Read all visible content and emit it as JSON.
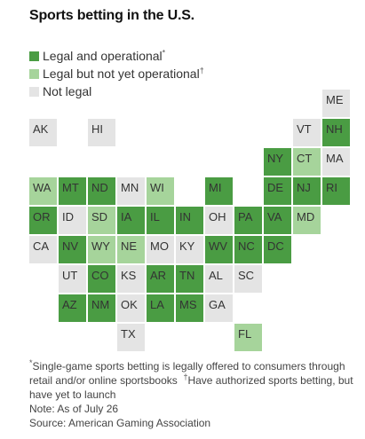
{
  "title": "Sports betting in the U.S.",
  "legend": {
    "items": [
      {
        "key": "legal",
        "label": "Legal and operational",
        "marker": "*",
        "color": "#4a9c43"
      },
      {
        "key": "pending",
        "label": "Legal but not yet operational",
        "marker": "†",
        "color": "#a6d49b"
      },
      {
        "key": "none",
        "label": "Not legal",
        "marker": "",
        "color": "#e4e4e4"
      }
    ]
  },
  "states": [
    {
      "abbr": "ME",
      "status": "none",
      "col": 10,
      "row": 0
    },
    {
      "abbr": "AK",
      "status": "none",
      "col": 0,
      "row": 1
    },
    {
      "abbr": "HI",
      "status": "none",
      "col": 2,
      "row": 1
    },
    {
      "abbr": "VT",
      "status": "none",
      "col": 9,
      "row": 1
    },
    {
      "abbr": "NH",
      "status": "legal",
      "col": 10,
      "row": 1
    },
    {
      "abbr": "NY",
      "status": "legal",
      "col": 8,
      "row": 2
    },
    {
      "abbr": "CT",
      "status": "pending",
      "col": 9,
      "row": 2
    },
    {
      "abbr": "MA",
      "status": "none",
      "col": 10,
      "row": 2
    },
    {
      "abbr": "WA",
      "status": "pending",
      "col": 0,
      "row": 3
    },
    {
      "abbr": "MT",
      "status": "legal",
      "col": 1,
      "row": 3
    },
    {
      "abbr": "ND",
      "status": "legal",
      "col": 2,
      "row": 3
    },
    {
      "abbr": "MN",
      "status": "none",
      "col": 3,
      "row": 3
    },
    {
      "abbr": "WI",
      "status": "pending",
      "col": 4,
      "row": 3
    },
    {
      "abbr": "MI",
      "status": "legal",
      "col": 6,
      "row": 3
    },
    {
      "abbr": "DE",
      "status": "legal",
      "col": 8,
      "row": 3
    },
    {
      "abbr": "NJ",
      "status": "legal",
      "col": 9,
      "row": 3
    },
    {
      "abbr": "RI",
      "status": "legal",
      "col": 10,
      "row": 3
    },
    {
      "abbr": "OR",
      "status": "legal",
      "col": 0,
      "row": 4
    },
    {
      "abbr": "ID",
      "status": "none",
      "col": 1,
      "row": 4
    },
    {
      "abbr": "SD",
      "status": "pending",
      "col": 2,
      "row": 4
    },
    {
      "abbr": "IA",
      "status": "legal",
      "col": 3,
      "row": 4
    },
    {
      "abbr": "IL",
      "status": "legal",
      "col": 4,
      "row": 4
    },
    {
      "abbr": "IN",
      "status": "legal",
      "col": 5,
      "row": 4
    },
    {
      "abbr": "OH",
      "status": "none",
      "col": 6,
      "row": 4
    },
    {
      "abbr": "PA",
      "status": "legal",
      "col": 7,
      "row": 4
    },
    {
      "abbr": "VA",
      "status": "legal",
      "col": 8,
      "row": 4
    },
    {
      "abbr": "MD",
      "status": "pending",
      "col": 9,
      "row": 4
    },
    {
      "abbr": "CA",
      "status": "none",
      "col": 0,
      "row": 5
    },
    {
      "abbr": "NV",
      "status": "legal",
      "col": 1,
      "row": 5
    },
    {
      "abbr": "WY",
      "status": "pending",
      "col": 2,
      "row": 5
    },
    {
      "abbr": "NE",
      "status": "pending",
      "col": 3,
      "row": 5
    },
    {
      "abbr": "MO",
      "status": "none",
      "col": 4,
      "row": 5
    },
    {
      "abbr": "KY",
      "status": "none",
      "col": 5,
      "row": 5
    },
    {
      "abbr": "WV",
      "status": "legal",
      "col": 6,
      "row": 5
    },
    {
      "abbr": "NC",
      "status": "legal",
      "col": 7,
      "row": 5
    },
    {
      "abbr": "DC",
      "status": "legal",
      "col": 8,
      "row": 5
    },
    {
      "abbr": "UT",
      "status": "none",
      "col": 1,
      "row": 6
    },
    {
      "abbr": "CO",
      "status": "legal",
      "col": 2,
      "row": 6
    },
    {
      "abbr": "KS",
      "status": "none",
      "col": 3,
      "row": 6
    },
    {
      "abbr": "AR",
      "status": "legal",
      "col": 4,
      "row": 6
    },
    {
      "abbr": "TN",
      "status": "legal",
      "col": 5,
      "row": 6
    },
    {
      "abbr": "AL",
      "status": "none",
      "col": 6,
      "row": 6
    },
    {
      "abbr": "SC",
      "status": "none",
      "col": 7,
      "row": 6
    },
    {
      "abbr": "AZ",
      "status": "legal",
      "col": 1,
      "row": 7
    },
    {
      "abbr": "NM",
      "status": "legal",
      "col": 2,
      "row": 7
    },
    {
      "abbr": "OK",
      "status": "none",
      "col": 3,
      "row": 7
    },
    {
      "abbr": "LA",
      "status": "legal",
      "col": 4,
      "row": 7
    },
    {
      "abbr": "MS",
      "status": "legal",
      "col": 5,
      "row": 7
    },
    {
      "abbr": "GA",
      "status": "none",
      "col": 6,
      "row": 7
    },
    {
      "abbr": "TX",
      "status": "none",
      "col": 3,
      "row": 8
    },
    {
      "abbr": "FL",
      "status": "pending",
      "col": 7,
      "row": 8
    }
  ],
  "notes": {
    "line1_marker": "*",
    "line1_text": "Single-game sports betting is legally offered to consumers through retail and/or online sportsbooks",
    "line1_marker2": "†",
    "line1_text2": "Have authorized sports betting, but have yet to launch",
    "line2": "Note: As of July 26",
    "line3": "Source: American Gaming Association"
  }
}
